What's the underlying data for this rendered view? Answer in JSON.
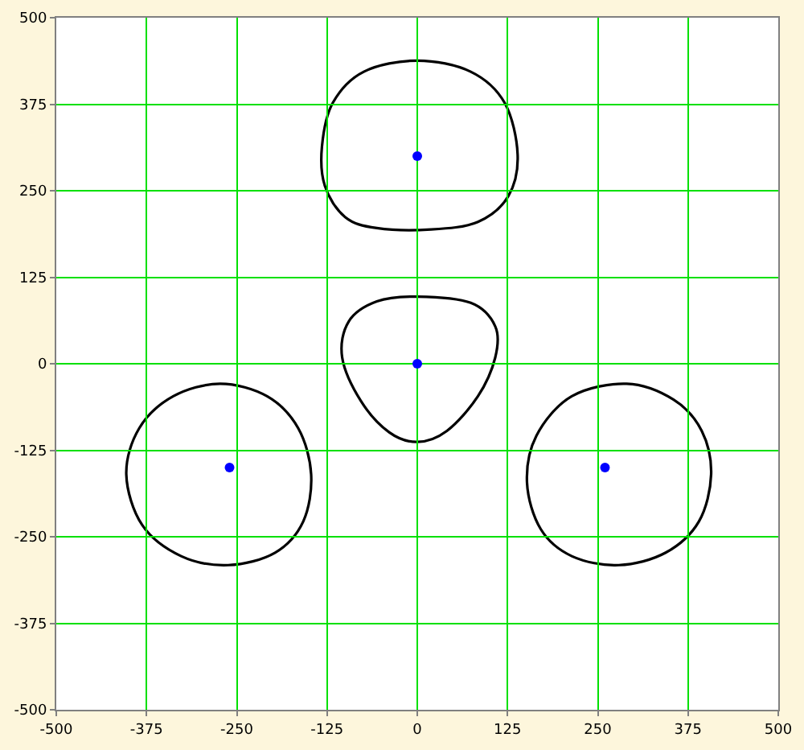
{
  "chart_data": {
    "type": "scatter",
    "xlim": [
      -500,
      500
    ],
    "ylim": [
      -500,
      500
    ],
    "xticks": [
      -500,
      -375,
      -250,
      -125,
      0,
      125,
      250,
      375,
      500
    ],
    "yticks": [
      -500,
      -375,
      -250,
      -125,
      0,
      125,
      250,
      375,
      500
    ],
    "grid": true,
    "series": [
      {
        "color": "#0000ff",
        "marker": "circle",
        "x": [
          0,
          0,
          -260,
          260
        ],
        "values": [
          300,
          0,
          -150,
          -150
        ]
      }
    ]
  }
}
